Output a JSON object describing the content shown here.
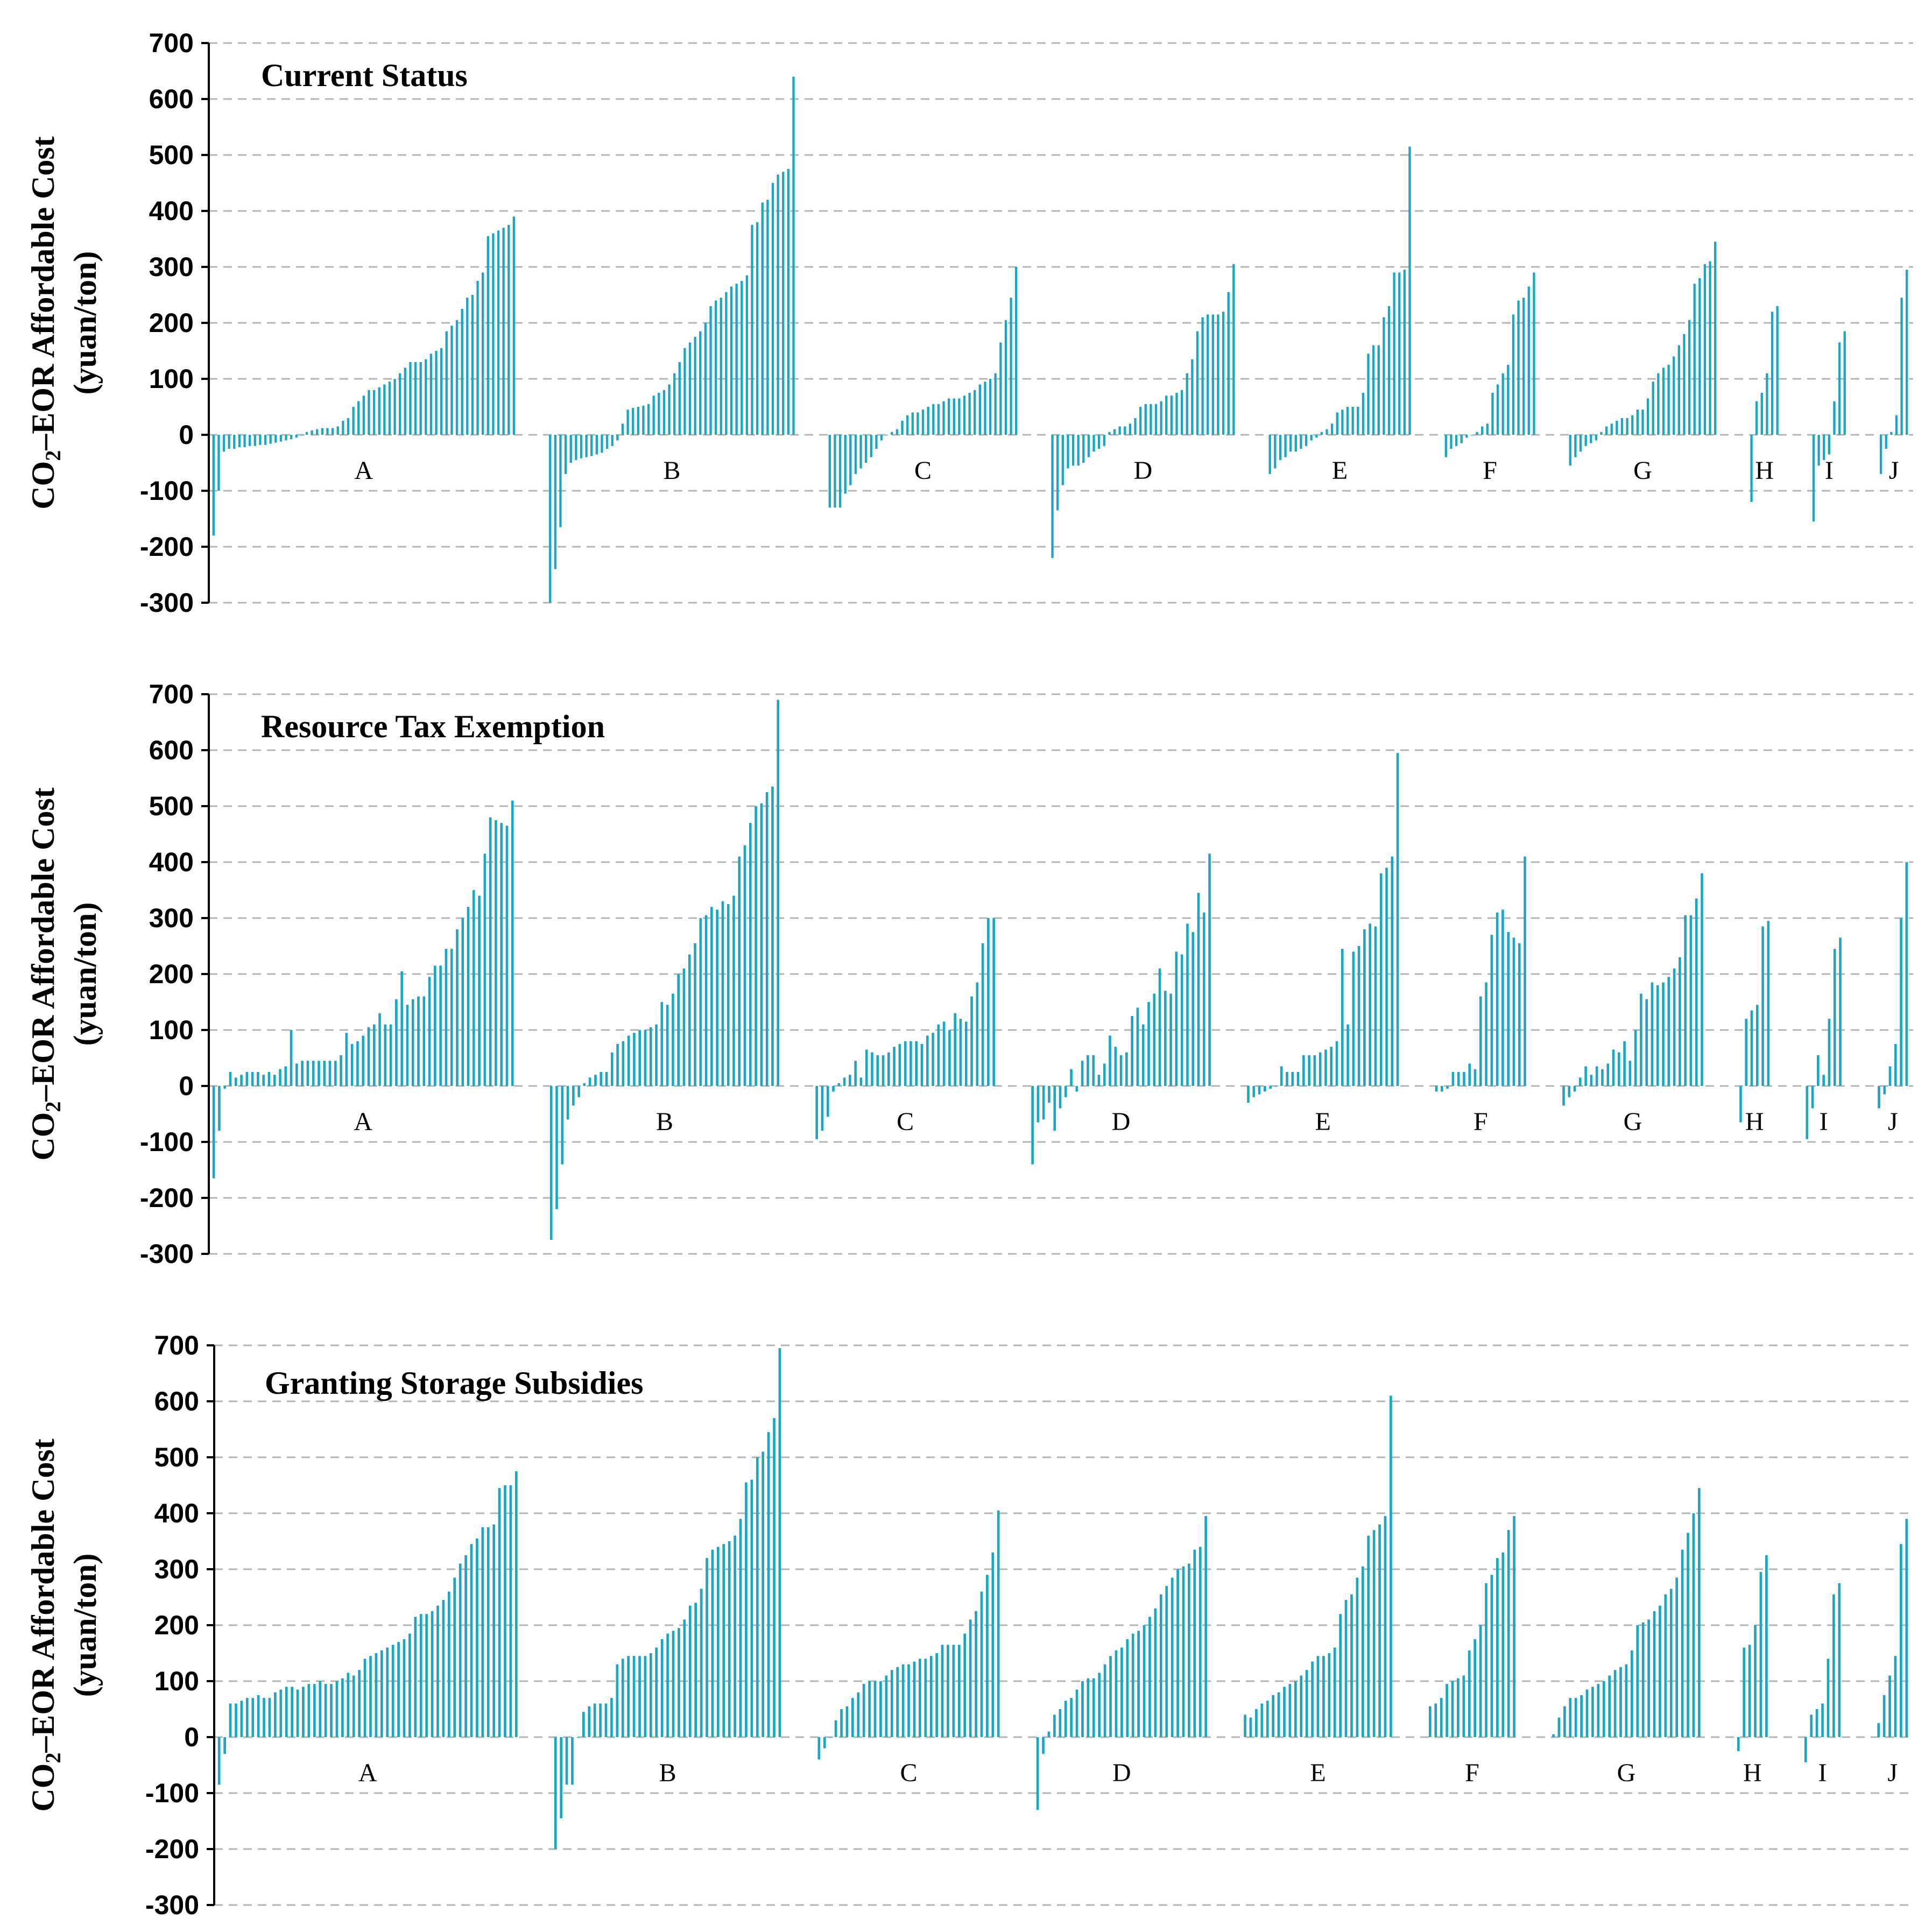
{
  "figure": {
    "bar_color": "#1ba6c2",
    "grid_color": "#b4b4b4",
    "ylabel_line1_pre": "CO",
    "ylabel_line1_sub": "2",
    "ylabel_line1_post": "–EOR Affordable Cost",
    "ylabel_line2": "(yuan/ton)"
  },
  "chart_data": [
    {
      "type": "bar",
      "title": "Current Status",
      "ylim": [
        -300,
        700
      ],
      "yticks": [
        700,
        600,
        500,
        400,
        300,
        200,
        100,
        0,
        -100,
        -200,
        -300
      ],
      "grid": true,
      "groups": [
        {
          "label": "A",
          "values": [
            -180,
            -100,
            -30,
            -25,
            -25,
            -22,
            -22,
            -20,
            -20,
            -18,
            -18,
            -16,
            -14,
            -12,
            -10,
            -8,
            -5,
            0,
            5,
            8,
            10,
            12,
            12,
            12,
            15,
            25,
            30,
            50,
            60,
            70,
            80,
            80,
            85,
            90,
            95,
            100,
            110,
            120,
            130,
            130,
            130,
            135,
            145,
            150,
            155,
            185,
            195,
            205,
            225,
            245,
            250,
            275,
            290,
            355,
            360,
            365,
            370,
            375,
            390
          ]
        },
        {
          "label": "B",
          "values": [
            -300,
            -240,
            -165,
            -70,
            -50,
            -45,
            -42,
            -40,
            -38,
            -35,
            -32,
            -25,
            -20,
            -10,
            20,
            45,
            48,
            50,
            52,
            55,
            70,
            75,
            80,
            90,
            110,
            130,
            155,
            165,
            175,
            185,
            200,
            230,
            240,
            245,
            255,
            265,
            270,
            275,
            285,
            375,
            380,
            415,
            420,
            450,
            465,
            470,
            475,
            640
          ]
        },
        {
          "label": "C",
          "values": [
            -130,
            -130,
            -130,
            -105,
            -90,
            -70,
            -60,
            -50,
            -40,
            -25,
            -10,
            0,
            5,
            10,
            25,
            35,
            40,
            40,
            45,
            50,
            55,
            55,
            60,
            65,
            65,
            65,
            70,
            75,
            80,
            90,
            95,
            100,
            110,
            165,
            205,
            245,
            300
          ]
        },
        {
          "label": "D",
          "values": [
            -220,
            -135,
            -90,
            -60,
            -55,
            -55,
            -50,
            -40,
            -30,
            -25,
            -20,
            5,
            10,
            15,
            15,
            20,
            30,
            50,
            55,
            55,
            55,
            60,
            70,
            70,
            75,
            80,
            110,
            135,
            185,
            210,
            215,
            215,
            215,
            220,
            255,
            305
          ]
        },
        {
          "label": "E",
          "values": [
            -70,
            -60,
            -45,
            -40,
            -30,
            -30,
            -25,
            -20,
            -10,
            -5,
            5,
            10,
            20,
            40,
            45,
            50,
            50,
            50,
            75,
            145,
            160,
            160,
            210,
            230,
            290,
            290,
            295,
            515
          ]
        },
        {
          "label": "F",
          "values": [
            -40,
            -25,
            -20,
            -15,
            -5,
            0,
            5,
            15,
            20,
            75,
            90,
            110,
            125,
            215,
            240,
            245,
            265,
            290
          ]
        },
        {
          "label": "G",
          "values": [
            -55,
            -40,
            -30,
            -20,
            -15,
            -10,
            5,
            15,
            20,
            25,
            30,
            30,
            35,
            45,
            45,
            65,
            95,
            110,
            120,
            125,
            140,
            160,
            180,
            205,
            270,
            280,
            305,
            310,
            345
          ]
        },
        {
          "label": "H",
          "values": [
            -120,
            60,
            75,
            110,
            220,
            230
          ]
        },
        {
          "label": "I",
          "values": [
            -155,
            -55,
            -45,
            -35,
            60,
            165,
            185
          ]
        },
        {
          "label": "J",
          "values": [
            -70,
            -25,
            5,
            35,
            245,
            295
          ]
        }
      ]
    },
    {
      "type": "bar",
      "title": "Resource Tax Exemption",
      "ylim": [
        -300,
        700
      ],
      "yticks": [
        700,
        600,
        500,
        400,
        300,
        200,
        100,
        0,
        -100,
        -200,
        -300
      ],
      "grid": true,
      "groups": [
        {
          "label": "A",
          "values": [
            -165,
            -80,
            -5,
            25,
            15,
            20,
            25,
            25,
            25,
            20,
            25,
            20,
            30,
            35,
            100,
            40,
            45,
            45,
            45,
            45,
            45,
            45,
            45,
            55,
            95,
            75,
            80,
            90,
            105,
            110,
            130,
            110,
            110,
            155,
            205,
            145,
            155,
            160,
            160,
            195,
            215,
            215,
            245,
            245,
            280,
            300,
            320,
            350,
            340,
            415,
            480,
            475,
            470,
            465,
            510
          ]
        },
        {
          "label": "B",
          "values": [
            -275,
            -220,
            -140,
            -60,
            -35,
            -20,
            5,
            15,
            20,
            25,
            25,
            60,
            75,
            80,
            90,
            95,
            100,
            100,
            105,
            110,
            150,
            145,
            165,
            200,
            210,
            235,
            255,
            300,
            305,
            320,
            315,
            330,
            325,
            340,
            410,
            430,
            470,
            500,
            505,
            525,
            535,
            690
          ]
        },
        {
          "label": "C",
          "values": [
            -95,
            -80,
            -55,
            -10,
            5,
            15,
            20,
            45,
            15,
            65,
            60,
            55,
            55,
            60,
            70,
            75,
            80,
            80,
            80,
            75,
            90,
            95,
            110,
            115,
            100,
            130,
            120,
            115,
            160,
            185,
            255,
            300,
            300
          ]
        },
        {
          "label": "D",
          "values": [
            -140,
            -65,
            -60,
            -30,
            -80,
            -40,
            -20,
            30,
            -10,
            45,
            55,
            55,
            20,
            40,
            90,
            70,
            55,
            60,
            125,
            140,
            110,
            150,
            165,
            210,
            170,
            165,
            240,
            235,
            290,
            275,
            345,
            310,
            415
          ]
        },
        {
          "label": "E",
          "values": [
            -30,
            -20,
            -15,
            -10,
            -5,
            0,
            35,
            25,
            25,
            25,
            55,
            55,
            55,
            60,
            65,
            70,
            80,
            245,
            110,
            240,
            250,
            280,
            290,
            285,
            380,
            390,
            410,
            595
          ]
        },
        {
          "label": "F",
          "values": [
            -10,
            -10,
            -5,
            25,
            25,
            25,
            40,
            30,
            160,
            185,
            270,
            310,
            315,
            275,
            265,
            255,
            410
          ]
        },
        {
          "label": "G",
          "values": [
            -35,
            -20,
            -10,
            15,
            35,
            20,
            35,
            30,
            40,
            65,
            60,
            80,
            45,
            100,
            165,
            155,
            185,
            180,
            185,
            195,
            210,
            230,
            305,
            305,
            335,
            380
          ]
        },
        {
          "label": "H",
          "values": [
            -65,
            120,
            135,
            145,
            285,
            295
          ]
        },
        {
          "label": "I",
          "values": [
            -95,
            -40,
            55,
            20,
            120,
            245,
            265
          ]
        },
        {
          "label": "J",
          "values": [
            -40,
            -15,
            35,
            75,
            300,
            400
          ]
        }
      ]
    },
    {
      "type": "bar",
      "title": "Granting Storage Subsidies",
      "ylim": [
        -300,
        700
      ],
      "yticks": [
        700,
        600,
        500,
        400,
        300,
        200,
        100,
        0,
        -100,
        -200,
        -300
      ],
      "grid": true,
      "groups": [
        {
          "label": "A",
          "values": [
            -85,
            -30,
            60,
            60,
            65,
            70,
            70,
            75,
            70,
            70,
            80,
            85,
            90,
            90,
            85,
            90,
            95,
            95,
            100,
            95,
            95,
            100,
            105,
            115,
            110,
            120,
            140,
            145,
            150,
            155,
            160,
            165,
            170,
            175,
            185,
            215,
            220,
            220,
            225,
            235,
            245,
            260,
            285,
            310,
            325,
            345,
            355,
            375,
            375,
            380,
            445,
            450,
            450,
            475
          ]
        },
        {
          "label": "B",
          "values": [
            -200,
            -145,
            -85,
            -85,
            0,
            45,
            55,
            60,
            60,
            60,
            70,
            130,
            140,
            145,
            145,
            145,
            145,
            150,
            160,
            175,
            185,
            190,
            195,
            210,
            235,
            240,
            265,
            320,
            335,
            340,
            345,
            350,
            360,
            390,
            455,
            460,
            500,
            510,
            545,
            570,
            695
          ]
        },
        {
          "label": "C",
          "values": [
            -40,
            -20,
            0,
            30,
            50,
            55,
            70,
            80,
            95,
            100,
            100,
            100,
            110,
            120,
            125,
            130,
            130,
            135,
            140,
            140,
            145,
            150,
            165,
            165,
            165,
            165,
            185,
            210,
            225,
            260,
            290,
            330,
            405
          ]
        },
        {
          "label": "D",
          "values": [
            -130,
            -30,
            10,
            40,
            50,
            65,
            70,
            85,
            100,
            105,
            105,
            115,
            130,
            145,
            155,
            160,
            175,
            185,
            190,
            200,
            215,
            230,
            255,
            270,
            285,
            300,
            305,
            310,
            335,
            340,
            395
          ]
        },
        {
          "label": "E",
          "values": [
            40,
            35,
            50,
            60,
            65,
            75,
            80,
            90,
            95,
            100,
            110,
            120,
            135,
            145,
            145,
            150,
            160,
            220,
            245,
            255,
            285,
            305,
            360,
            370,
            380,
            395,
            610
          ]
        },
        {
          "label": "F",
          "values": [
            55,
            60,
            70,
            95,
            100,
            105,
            110,
            155,
            175,
            200,
            275,
            290,
            320,
            330,
            370,
            395
          ]
        },
        {
          "label": "G",
          "values": [
            5,
            35,
            55,
            70,
            70,
            75,
            85,
            90,
            95,
            100,
            110,
            120,
            125,
            130,
            155,
            200,
            205,
            210,
            225,
            235,
            255,
            265,
            285,
            335,
            365,
            400,
            445
          ]
        },
        {
          "label": "H",
          "values": [
            -25,
            160,
            165,
            200,
            295,
            325
          ]
        },
        {
          "label": "I",
          "values": [
            -45,
            40,
            50,
            60,
            140,
            255,
            275
          ]
        },
        {
          "label": "J",
          "values": [
            25,
            75,
            110,
            145,
            345,
            390
          ]
        }
      ]
    }
  ]
}
